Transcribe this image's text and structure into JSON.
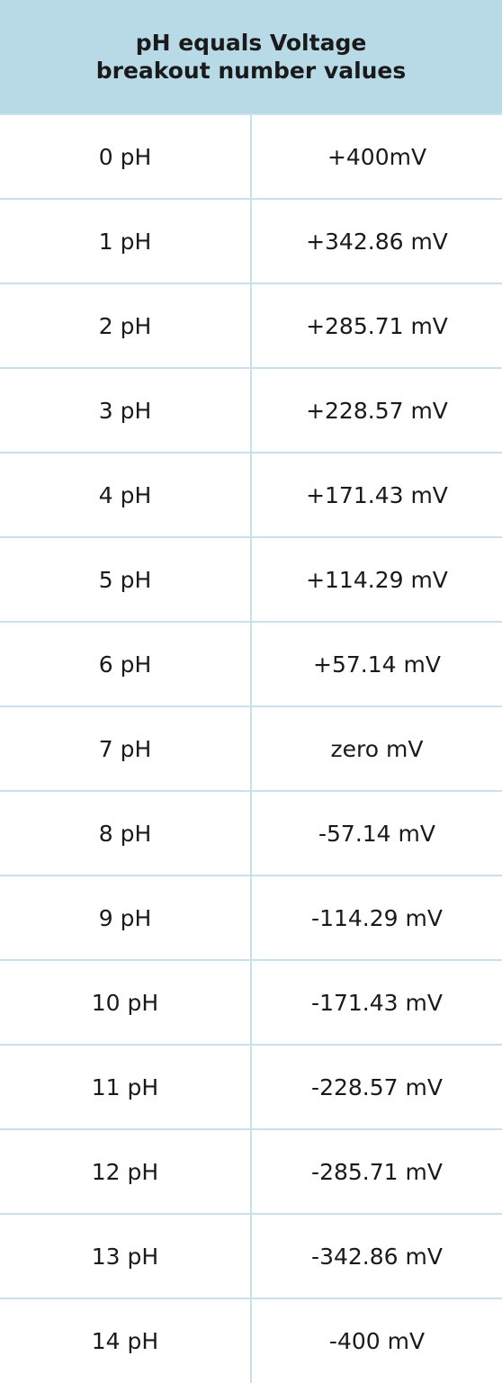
{
  "header": {
    "title_line1": "pH equals Voltage",
    "title_line2": "breakout number values"
  },
  "rows": [
    {
      "ph": "0 pH",
      "voltage": "+400mV"
    },
    {
      "ph": "1 pH",
      "voltage": "+342.86 mV"
    },
    {
      "ph": "2 pH",
      "voltage": "+285.71 mV"
    },
    {
      "ph": "3 pH",
      "voltage": "+228.57 mV"
    },
    {
      "ph": "4 pH",
      "voltage": "+171.43 mV"
    },
    {
      "ph": "5 pH",
      "voltage": "+114.29 mV"
    },
    {
      "ph": "6 pH",
      "voltage": "+57.14 mV"
    },
    {
      "ph": "7 pH",
      "voltage": "zero mV"
    },
    {
      "ph": "8 pH",
      "voltage": "-57.14 mV"
    },
    {
      "ph": "9 pH",
      "voltage": "-114.29 mV"
    },
    {
      "ph": "10 pH",
      "voltage": "-171.43 mV"
    },
    {
      "ph": "11 pH",
      "voltage": "-228.57 mV"
    },
    {
      "ph": "12 pH",
      "voltage": "-285.71 mV"
    },
    {
      "ph": "13 pH",
      "voltage": "-342.86 mV"
    },
    {
      "ph": "14 pH",
      "voltage": "-400 mV"
    }
  ],
  "colors": {
    "header_background": "#b7dae6",
    "grid_line": "#c8e1ea",
    "text": "#1a1a1a"
  }
}
